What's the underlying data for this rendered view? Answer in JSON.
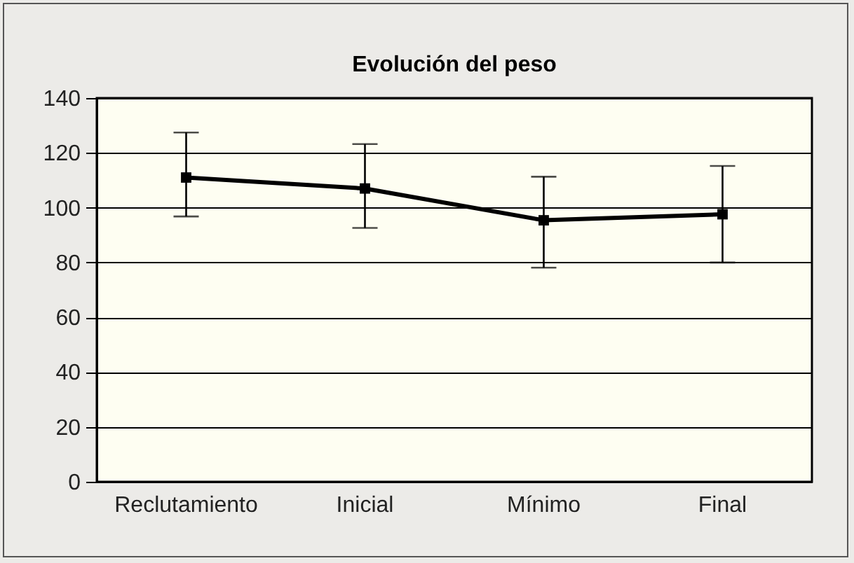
{
  "chart_data": {
    "type": "line",
    "title": "Evolución del peso",
    "categories": [
      "Reclutamiento",
      "Inicial",
      "Mínimo",
      "Final"
    ],
    "series": [
      {
        "color": "#000000",
        "values": [
          111,
          107,
          95.4,
          97.6
        ],
        "errors": [
          [
            96.8,
            127.4
          ],
          [
            92.6,
            123.2
          ],
          [
            78.1,
            111.3
          ],
          [
            80,
            115.2
          ]
        ]
      }
    ],
    "ylim": [
      0,
      140
    ],
    "yticks": [
      0,
      20,
      40,
      60,
      80,
      100,
      120,
      140
    ],
    "grid": "y",
    "marker": "square",
    "line_style": "solid"
  }
}
